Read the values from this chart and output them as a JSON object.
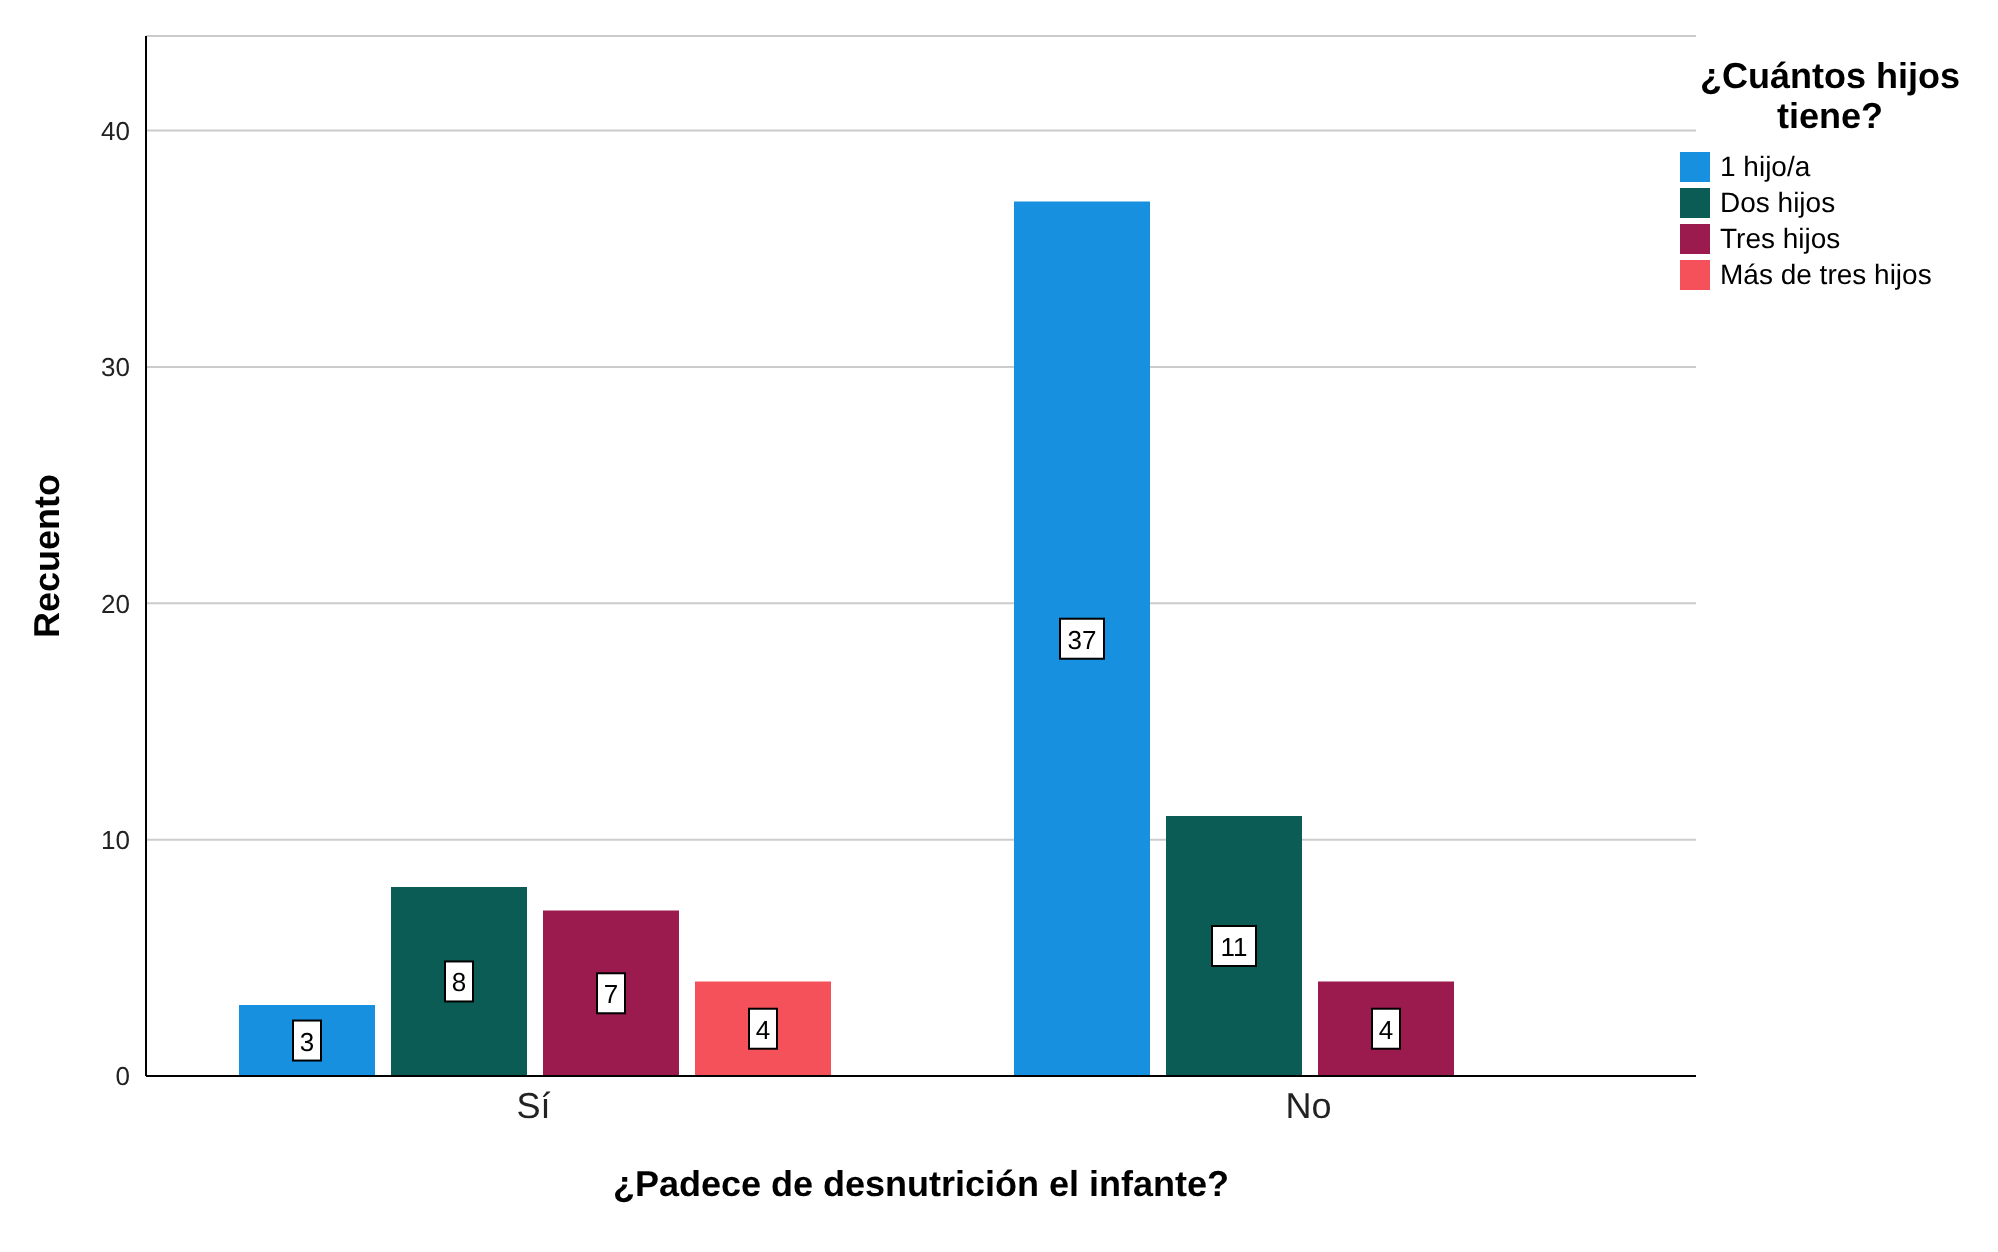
{
  "chart_data": {
    "type": "bar",
    "xlabel": "¿Padece de desnutrición el infante?",
    "ylabel": "Recuento",
    "legend_title": "¿Cuántos hijos tiene?",
    "categories": [
      "Sí",
      "No"
    ],
    "series": [
      {
        "name": "1 hijo/a",
        "color": "#1790e0",
        "values": [
          3,
          37
        ]
      },
      {
        "name": "Dos hijos",
        "color": "#0b5c55",
        "values": [
          8,
          11
        ]
      },
      {
        "name": "Tres hijos",
        "color": "#9b1b4e",
        "values": [
          7,
          4
        ]
      },
      {
        "name": "Más de tres hijos",
        "color": "#f4515a",
        "values": [
          4,
          null
        ]
      }
    ],
    "ylim": [
      0,
      44
    ],
    "yticks": [
      0,
      10,
      20,
      30,
      40
    ],
    "grid": "y",
    "legend": "right",
    "data_labels": true
  }
}
